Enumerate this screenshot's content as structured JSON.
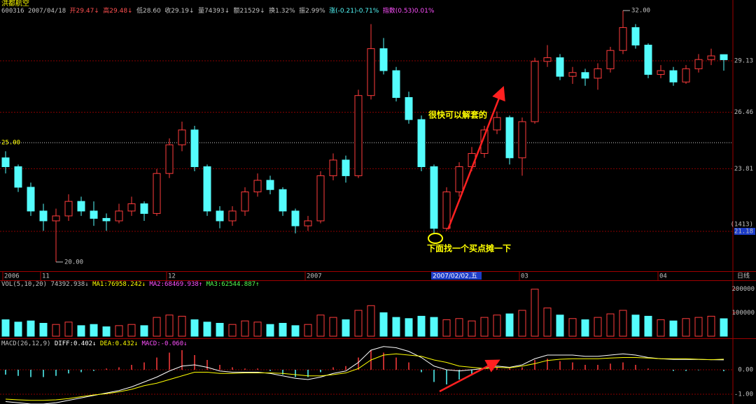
{
  "header": {
    "name": "洪都航空",
    "code": "600316",
    "date": "2007/04/18",
    "quote": [
      "开29.47↓",
      "高29.48↓",
      "低28.60",
      "收29.19↓",
      "量74393↓",
      "额21529↓",
      "换1.32%",
      "振2.99%",
      "涨(-0.21)-0.71%",
      "指数(0.53)0.01%"
    ]
  },
  "chart_data": [
    {
      "type": "candlestick",
      "open": [
        24.3,
        23.9,
        23.0,
        22.0,
        21.6,
        21.8,
        22.4,
        22.0,
        21.7,
        21.6,
        22.0,
        22.3,
        21.9,
        23.6,
        24.9,
        25.6,
        23.9,
        22.0,
        21.6,
        22.0,
        22.8,
        23.3,
        22.9,
        22.0,
        21.4,
        21.6,
        23.5,
        24.2,
        23.5,
        27.3,
        29.8,
        28.6,
        27.2,
        26.1,
        23.9,
        21.3,
        22.8,
        23.9,
        24.5,
        25.6,
        26.2,
        24.3,
        26.0,
        29.1,
        29.3,
        28.3,
        28.5,
        28.2,
        28.7,
        29.7,
        31.0,
        30.0,
        28.4,
        28.6,
        28.0,
        28.7,
        29.2,
        29.47
      ],
      "high": [
        24.6,
        24.0,
        23.2,
        22.3,
        22.1,
        22.7,
        22.6,
        22.4,
        21.9,
        22.3,
        22.6,
        22.4,
        23.8,
        25.2,
        26.0,
        25.8,
        24.0,
        22.2,
        22.2,
        23.0,
        23.6,
        23.5,
        23.0,
        22.1,
        21.8,
        23.7,
        24.5,
        24.4,
        27.6,
        31.2,
        30.4,
        28.8,
        27.5,
        26.3,
        24.0,
        23.0,
        24.1,
        24.8,
        25.8,
        26.5,
        26.3,
        26.2,
        29.3,
        30.0,
        29.5,
        28.8,
        28.7,
        29.0,
        29.9,
        32.0,
        31.2,
        30.1,
        28.9,
        28.8,
        28.9,
        29.5,
        29.8,
        29.48
      ],
      "low": [
        23.6,
        22.8,
        21.8,
        21.2,
        20.0,
        21.6,
        21.8,
        21.4,
        21.2,
        21.5,
        21.8,
        21.6,
        21.8,
        23.4,
        24.6,
        23.7,
        21.8,
        21.3,
        21.4,
        21.8,
        22.6,
        22.7,
        21.8,
        21.1,
        21.2,
        21.5,
        23.3,
        23.2,
        23.4,
        27.1,
        28.4,
        27.0,
        25.9,
        23.7,
        21.1,
        21.2,
        22.6,
        23.7,
        24.3,
        25.4,
        24.0,
        23.5,
        25.9,
        28.8,
        28.1,
        27.9,
        27.8,
        27.6,
        28.5,
        29.5,
        29.8,
        28.2,
        28.2,
        27.8,
        27.9,
        28.5,
        28.9,
        28.6
      ],
      "close": [
        23.9,
        23.0,
        22.0,
        21.6,
        21.8,
        22.4,
        22.0,
        21.7,
        21.6,
        22.0,
        22.3,
        21.9,
        23.6,
        24.9,
        25.6,
        23.9,
        22.0,
        21.6,
        22.0,
        22.8,
        23.3,
        22.9,
        22.0,
        21.4,
        21.6,
        23.5,
        24.2,
        23.5,
        27.3,
        29.8,
        28.6,
        27.2,
        26.1,
        23.9,
        21.3,
        22.8,
        23.9,
        24.5,
        25.6,
        26.2,
        24.3,
        26.0,
        29.1,
        29.3,
        28.3,
        28.5,
        28.2,
        28.7,
        29.7,
        31.0,
        30.0,
        28.4,
        28.6,
        28.0,
        28.7,
        29.2,
        29.4,
        29.19
      ],
      "up_color": "#ff3c3c",
      "down_color": "#54fcfc",
      "log": true,
      "ylim": [
        19.66,
        32.13
      ],
      "yticks": [
        {
          "value": 21.18,
          "label": "21.18"
        },
        {
          "value": 23.81,
          "label": "23.81"
        },
        {
          "value": 26.46,
          "label": "26.46"
        },
        {
          "value": 29.13,
          "label": "29.13"
        }
      ],
      "ref_line": {
        "value": 25,
        "label": "25.00"
      },
      "high_mark": {
        "index": 49,
        "value": 32,
        "label": "32.00"
      },
      "low_mark": {
        "index": 4,
        "value": 20,
        "label": "20.00"
      },
      "x_labels": [
        {
          "index": 0,
          "label": "2006"
        },
        {
          "index": 3,
          "label": "11"
        },
        {
          "index": 13,
          "label": "12"
        },
        {
          "index": 24,
          "label": "2007"
        },
        {
          "index": 41,
          "label": "03"
        },
        {
          "index": 52,
          "label": "04"
        }
      ],
      "cursor_date": {
        "index": 34,
        "label": "2007/02/02,五"
      },
      "cursor_count": "(1413)",
      "period": "日线",
      "annotations": [
        "很快可以解套的",
        "下面找一个买点摊一下"
      ]
    },
    {
      "type": "bar",
      "legend": [
        "VOL(5,10,20)",
        "74392.938↓",
        "MA1:76958.242↓",
        "MA2:68469.938↑",
        "MA3:62544.887↑"
      ],
      "values": [
        70000,
        60000,
        65000,
        55000,
        50000,
        60000,
        45000,
        50000,
        40000,
        45000,
        50000,
        45000,
        80000,
        90000,
        85000,
        70000,
        60000,
        55000,
        50000,
        65000,
        60000,
        50000,
        55000,
        45000,
        50000,
        90000,
        80000,
        70000,
        110000,
        130000,
        100000,
        80000,
        75000,
        85000,
        80000,
        70000,
        75000,
        65000,
        80000,
        90000,
        95000,
        110000,
        200000,
        120000,
        90000,
        75000,
        70000,
        80000,
        95000,
        110000,
        90000,
        85000,
        70000,
        65000,
        75000,
        80000,
        85000,
        74393
      ],
      "ylim": [
        0,
        220000
      ],
      "yticks": [
        100000,
        200000
      ]
    },
    {
      "type": "macd",
      "legend": [
        "MACD(26,12,9)",
        "DIFF:0.402↓",
        "DEA:0.432↓",
        "MACD:-0.060↓"
      ],
      "diff": [
        -1.3,
        -1.35,
        -1.4,
        -1.4,
        -1.35,
        -1.25,
        -1.15,
        -1.05,
        -0.95,
        -0.85,
        -0.7,
        -0.5,
        -0.3,
        -0.05,
        0.15,
        0.2,
        0.1,
        -0.05,
        -0.1,
        -0.1,
        -0.1,
        -0.15,
        -0.25,
        -0.35,
        -0.4,
        -0.3,
        -0.15,
        -0.05,
        0.3,
        0.8,
        0.95,
        0.9,
        0.75,
        0.5,
        0.15,
        0.0,
        -0.05,
        0.0,
        0.05,
        0.15,
        0.1,
        0.2,
        0.45,
        0.6,
        0.6,
        0.6,
        0.55,
        0.55,
        0.6,
        0.65,
        0.6,
        0.5,
        0.45,
        0.42,
        0.42,
        0.42,
        0.41,
        0.402
      ],
      "dea": [
        -1.2,
        -1.23,
        -1.25,
        -1.25,
        -1.23,
        -1.18,
        -1.1,
        -1.03,
        -0.98,
        -0.9,
        -0.8,
        -0.65,
        -0.55,
        -0.4,
        -0.25,
        -0.1,
        -0.1,
        -0.15,
        -0.15,
        -0.13,
        -0.13,
        -0.13,
        -0.15,
        -0.2,
        -0.25,
        -0.25,
        -0.2,
        -0.13,
        0.05,
        0.4,
        0.6,
        0.65,
        0.6,
        0.55,
        0.4,
        0.3,
        0.15,
        0.1,
        0.05,
        0.1,
        0.08,
        0.15,
        0.25,
        0.38,
        0.43,
        0.45,
        0.45,
        0.45,
        0.48,
        0.5,
        0.5,
        0.48,
        0.45,
        0.45,
        0.45,
        0.43,
        0.41,
        0.432
      ],
      "macd": [
        -0.2,
        -0.25,
        -0.3,
        -0.3,
        -0.25,
        -0.15,
        -0.1,
        -0.05,
        0.05,
        0.1,
        0.2,
        0.3,
        0.5,
        0.7,
        0.8,
        0.6,
        0.4,
        0.2,
        0.1,
        0.05,
        0.05,
        -0.05,
        -0.2,
        -0.3,
        -0.3,
        -0.1,
        0.1,
        0.15,
        0.5,
        0.8,
        0.7,
        0.5,
        0.3,
        -0.1,
        -0.5,
        -0.6,
        -0.4,
        -0.2,
        0,
        0.1,
        0.05,
        0.1,
        0.4,
        0.45,
        0.35,
        0.3,
        0.2,
        0.2,
        0.25,
        0.3,
        0.2,
        0.05,
        0,
        -0.05,
        -0.05,
        -0.02,
        0,
        -0.06
      ],
      "ylim": [
        -1.4,
        1.257
      ],
      "yticks": [
        {
          "value": 0,
          "label": "0.00"
        },
        {
          "value": -1,
          "label": "-1.00"
        }
      ]
    }
  ]
}
